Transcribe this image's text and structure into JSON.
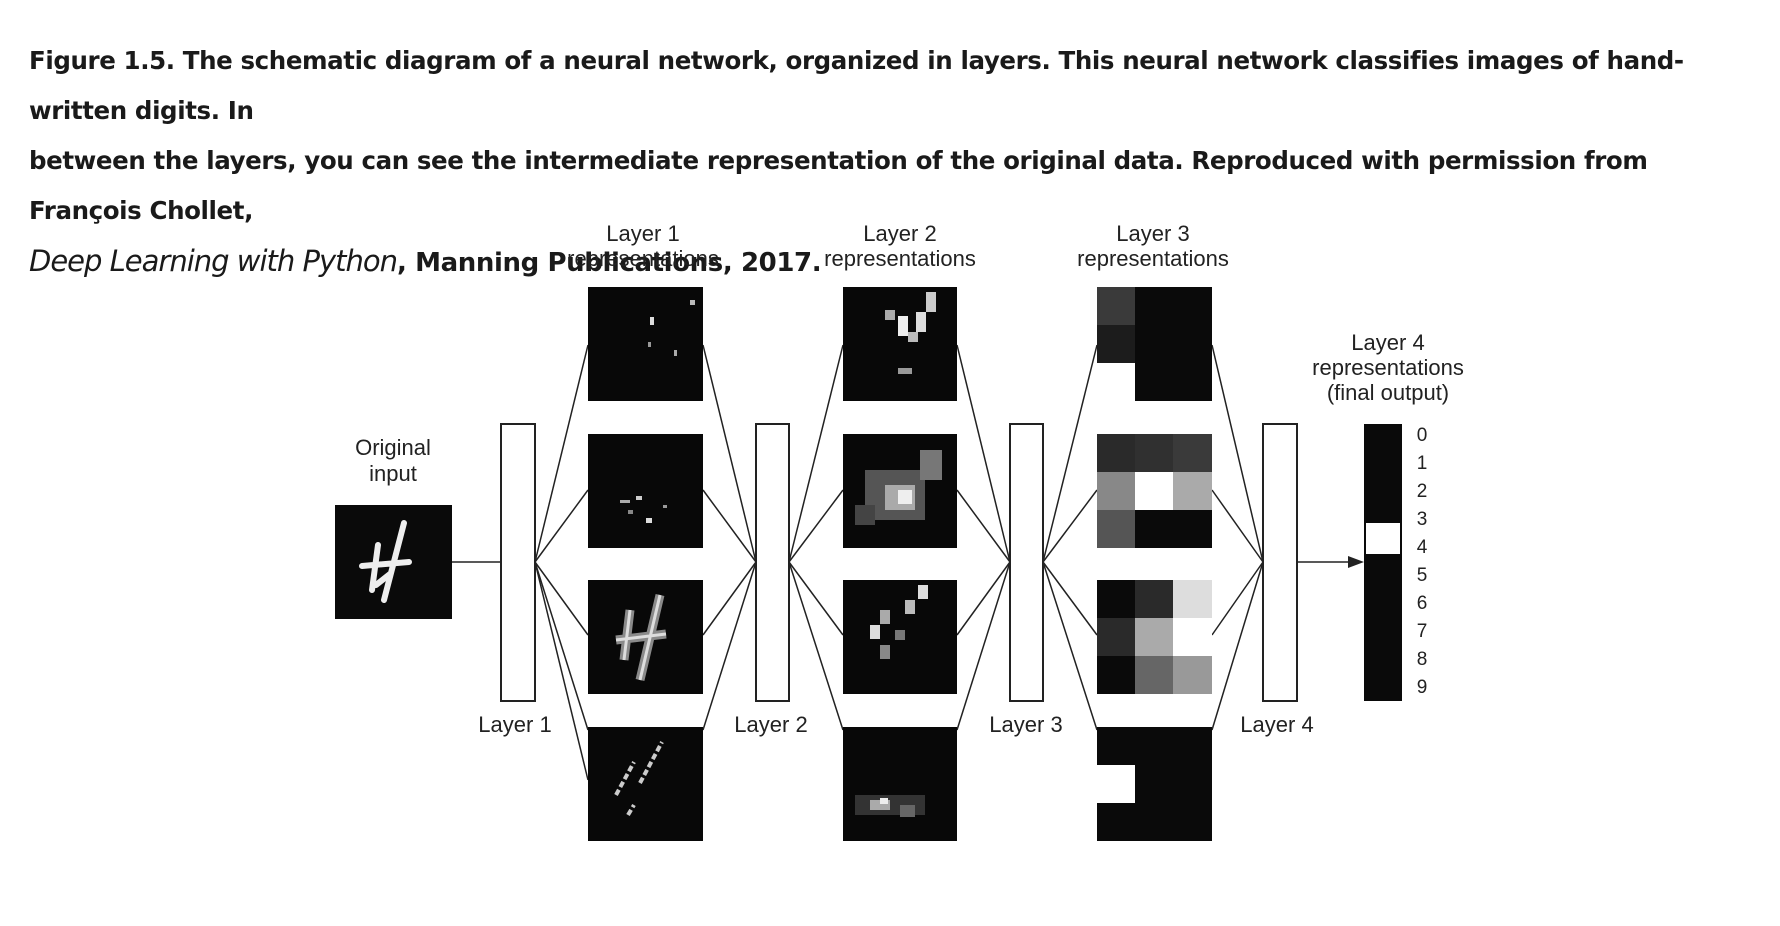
{
  "caption": {
    "line1": "Figure 1.5. The schematic diagram of a neural network, organized in layers. This neural network classifies images of hand-written digits. In",
    "line2": "between the layers, you can see the intermediate representation of the original data. Reproduced with permission from François Chollet,",
    "book_title": "Deep Learning with Python",
    "line3_rest": ", Manning Publications, 2017."
  },
  "diagram": {
    "input_label_1": "Original",
    "input_label_2": "input",
    "layers": [
      {
        "label": "Layer 1",
        "rep_label_1": "Layer 1",
        "rep_label_2": "representations"
      },
      {
        "label": "Layer 2",
        "rep_label_1": "Layer 2",
        "rep_label_2": "representations"
      },
      {
        "label": "Layer 3",
        "rep_label_1": "Layer 3",
        "rep_label_2": "representations"
      },
      {
        "label": "Layer 4",
        "rep_label_1": "Layer 4",
        "rep_label_2": "representations",
        "rep_label_3": "(final output)"
      }
    ],
    "output_digits": [
      "0",
      "1",
      "2",
      "3",
      "4",
      "5",
      "6",
      "7",
      "8",
      "9"
    ],
    "active_digit": "4",
    "colors": {
      "background": "#ffffff",
      "image_dark": "#0a0a0a",
      "line": "#222222"
    }
  }
}
